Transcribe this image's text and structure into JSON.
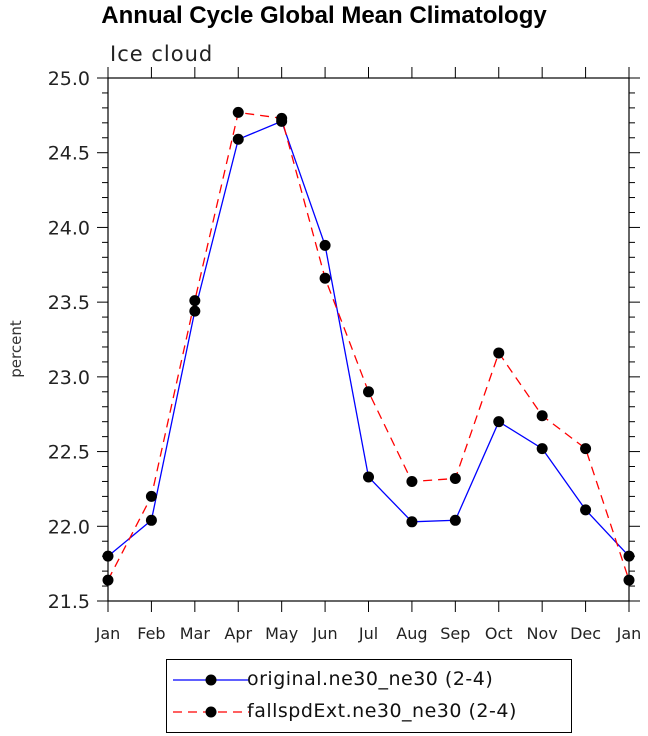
{
  "chart_data": {
    "type": "line",
    "title": "Annual Cycle Global Mean Climatology",
    "subtitle": "Ice cloud",
    "xlabel": "",
    "ylabel": "percent",
    "categories": [
      "Jan",
      "Feb",
      "Mar",
      "Apr",
      "May",
      "Jun",
      "Jul",
      "Aug",
      "Sep",
      "Oct",
      "Nov",
      "Dec",
      "Jan"
    ],
    "ylim": [
      21.5,
      25.0
    ],
    "yticks": [
      "21.5",
      "22.0",
      "22.5",
      "23.0",
      "23.5",
      "24.0",
      "24.5",
      "25.0"
    ],
    "grid": false,
    "legend_position": "bottom",
    "series": [
      {
        "name": "original.ne30_ne30 (2-4)",
        "color": "#0000ff",
        "line_style": "solid",
        "marker": "filled-circle",
        "values": [
          21.8,
          22.04,
          23.44,
          24.59,
          24.71,
          23.88,
          22.33,
          22.03,
          22.04,
          22.7,
          22.52,
          22.11,
          21.8
        ]
      },
      {
        "name": "fallspdExt.ne30_ne30 (2-4)",
        "color": "#ff0000",
        "line_style": "dashed",
        "marker": "filled-circle",
        "values": [
          21.64,
          22.2,
          23.51,
          24.77,
          24.73,
          23.66,
          22.9,
          22.3,
          22.32,
          23.16,
          22.74,
          22.52,
          21.64
        ]
      }
    ]
  }
}
